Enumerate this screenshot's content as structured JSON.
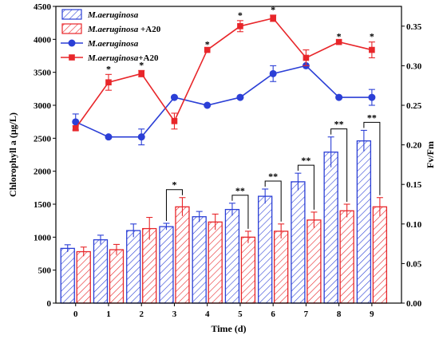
{
  "chart_data": {
    "type": "bar",
    "xlabel": "Time (d)",
    "ylabel_left": "Chlorophyll a (μg/L)",
    "ylabel_right": "Fv/Fm",
    "categories": [
      "0",
      "1",
      "2",
      "3",
      "4",
      "5",
      "6",
      "7",
      "8",
      "9"
    ],
    "ylim_left": [
      0,
      4500
    ],
    "ylim_right": [
      0,
      0.375
    ],
    "yticks_left": [
      "0",
      "500",
      "1000",
      "1500",
      "2000",
      "2500",
      "3000",
      "3500",
      "4000",
      "4500"
    ],
    "yticks_right": [
      "0.00",
      "0.05",
      "0.10",
      "0.15",
      "0.20",
      "0.25",
      "0.30",
      "0.35"
    ],
    "bar_series": [
      {
        "name": "M.aeruginosa",
        "color": "#2b3fd6",
        "values": [
          830,
          960,
          1100,
          1160,
          1310,
          1420,
          1620,
          1840,
          2290,
          2460
        ],
        "errors": [
          55,
          70,
          100,
          50,
          80,
          95,
          110,
          130,
          230,
          160
        ]
      },
      {
        "name": "M.aeruginosa +A20",
        "color": "#e8262a",
        "values": [
          780,
          810,
          1130,
          1460,
          1230,
          1000,
          1090,
          1260,
          1400,
          1460
        ],
        "errors": [
          70,
          80,
          170,
          140,
          120,
          90,
          110,
          120,
          100,
          140
        ]
      }
    ],
    "bar_significance": [
      {
        "x": "3",
        "label": "*"
      },
      {
        "x": "5",
        "label": "**"
      },
      {
        "x": "6",
        "label": "**"
      },
      {
        "x": "7",
        "label": "**"
      },
      {
        "x": "8",
        "label": "**"
      },
      {
        "x": "9",
        "label": "**"
      }
    ],
    "line_series": [
      {
        "name": "M.aeruginosa",
        "color": "#2b3fd6",
        "marker": "circle",
        "values": [
          0.229,
          0.21,
          0.21,
          0.26,
          0.25,
          0.26,
          0.29,
          0.3,
          0.26,
          0.26
        ],
        "errors": [
          0.01,
          0,
          0.01,
          0,
          0,
          0,
          0.01,
          0,
          0,
          0.01
        ]
      },
      {
        "name": "M.aeruginosa+A20",
        "color": "#e8262a",
        "marker": "square",
        "values": [
          0.221,
          0.279,
          0.29,
          0.23,
          0.32,
          0.35,
          0.36,
          0.31,
          0.33,
          0.32
        ],
        "errors": [
          0.003,
          0.01,
          0.004,
          0.01,
          0,
          0.007,
          0.004,
          0.01,
          0,
          0.01
        ]
      }
    ],
    "line_significance": [
      {
        "x": "1",
        "label": "*"
      },
      {
        "x": "2",
        "label": "*"
      },
      {
        "x": "4",
        "label": "*"
      },
      {
        "x": "5",
        "label": "*"
      },
      {
        "x": "6",
        "label": "*"
      },
      {
        "x": "8",
        "label": "*"
      },
      {
        "x": "9",
        "label": "*"
      }
    ],
    "legend": {
      "position": "top-left",
      "entries": [
        {
          "italic": "M.aeruginosa",
          "rest": ""
        },
        {
          "italic": "M.aeruginosa",
          "rest": " +A20"
        },
        {
          "italic": "M.aeruginosa",
          "rest": ""
        },
        {
          "italic": "M.aeruginosa",
          "rest": "+A20"
        }
      ]
    }
  }
}
